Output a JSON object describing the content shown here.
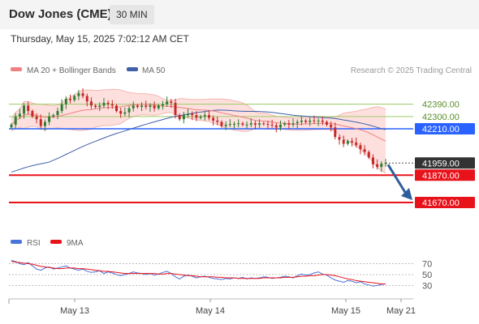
{
  "header": {
    "title": "Dow Jones (CME)",
    "timeframe": "30 MIN"
  },
  "timestamp": "Thursday, May 15, 2025 7:02:12 AM CET",
  "legend": {
    "ma20": "MA 20 + Bollinger Bands",
    "ma50": "MA 50",
    "copyright": "Research © 2025 Trading Central"
  },
  "rsi_legend": {
    "rsi": "RSI",
    "ma9": "9MA"
  },
  "colors": {
    "candle_up": "#2e7d32",
    "candle_down": "#c62828",
    "ma20": "#f08080",
    "bollinger_fill": "#fde0de",
    "ma50": "#3f5fa8",
    "resistance_green": "#9ccc65",
    "support_red": "#e8121b",
    "pivot_blue": "#2962ff",
    "current_price_bg": "#333333",
    "arrow": "#2f5d9b",
    "rsi_line": "#4a74d8",
    "rsi_ma": "#e8121b"
  },
  "chart_data": [
    {
      "type": "candlestick",
      "x_ticks": [
        "May 13",
        "May 14",
        "May 15",
        "May 21"
      ],
      "ylim": [
        41480,
        42560
      ],
      "series": [
        {
          "name": "MA 20 + Bollinger Bands"
        },
        {
          "name": "MA 50"
        }
      ],
      "levels": [
        {
          "value": 42390,
          "label": "42390.00",
          "kind": "resistance"
        },
        {
          "value": 42300,
          "label": "42300.00",
          "kind": "resistance"
        },
        {
          "value": 42210,
          "label": "42210.00",
          "kind": "pivot"
        },
        {
          "value": 41959,
          "label": "41959.00",
          "kind": "current"
        },
        {
          "value": 41870,
          "label": "41870.00",
          "kind": "support"
        },
        {
          "value": 41670,
          "label": "41670.00",
          "kind": "support"
        }
      ],
      "closes": [
        42240,
        42300,
        42320,
        42380,
        42340,
        42300,
        42280,
        42230,
        42260,
        42300,
        42310,
        42340,
        42390,
        42430,
        42420,
        42450,
        42470,
        42450,
        42410,
        42380,
        42370,
        42380,
        42400,
        42390,
        42380,
        42340,
        42320,
        42330,
        42360,
        42380,
        42370,
        42380,
        42370,
        42380,
        42360,
        42380,
        42390,
        42410,
        42400,
        42310,
        42280,
        42310,
        42320,
        42310,
        42290,
        42300,
        42310,
        42290,
        42270,
        42260,
        42230,
        42240,
        42245,
        42245,
        42250,
        42240,
        42240,
        42250,
        42240,
        42250,
        42245,
        42240,
        42235,
        42220,
        42240,
        42250,
        42240,
        42250,
        42260,
        42270,
        42260,
        42270,
        42265,
        42270,
        42260,
        42240,
        42220,
        42150,
        42130,
        42100,
        42120,
        42110,
        42090,
        42060,
        42040,
        42000,
        41950,
        41930,
        41955,
        41959
      ],
      "highs_offset": 30,
      "lows_offset": 30,
      "projection": {
        "from": 41959,
        "to": 41670
      }
    },
    {
      "type": "line",
      "title": "RSI",
      "y_ticks": [
        70,
        50,
        30
      ],
      "ylim": [
        10,
        90
      ],
      "series": [
        {
          "name": "RSI",
          "values": [
            76,
            74,
            70,
            68,
            72,
            66,
            60,
            58,
            62,
            64,
            60,
            62,
            64,
            66,
            62,
            60,
            58,
            60,
            56,
            54,
            55,
            57,
            52,
            55,
            53,
            50,
            48,
            50,
            52,
            55,
            53,
            52,
            50,
            52,
            49,
            51,
            54,
            56,
            52,
            46,
            42,
            47,
            49,
            47,
            44,
            46,
            47,
            45,
            43,
            42,
            41,
            43,
            42,
            44,
            43,
            45,
            42,
            44,
            43,
            44,
            46,
            45,
            43,
            44,
            45,
            47,
            46,
            44,
            48,
            51,
            49,
            50,
            53,
            55,
            51,
            49,
            44,
            40,
            38,
            36,
            39,
            38,
            35,
            37,
            33,
            31,
            29,
            30,
            32,
            33
          ]
        },
        {
          "name": "9MA",
          "values": [
            74,
            73,
            72,
            71,
            70,
            69,
            67,
            65,
            64,
            63,
            62,
            61,
            61,
            62,
            62,
            62,
            61,
            61,
            60,
            59,
            58,
            57,
            56,
            56,
            55,
            54,
            53,
            52,
            52,
            52,
            52,
            52,
            52,
            52,
            52,
            51,
            51,
            52,
            52,
            51,
            50,
            49,
            48,
            48,
            47,
            46,
            46,
            46,
            46,
            45,
            45,
            44,
            44,
            44,
            43,
            43,
            43,
            43,
            43,
            43,
            44,
            44,
            44,
            44,
            44,
            45,
            45,
            45,
            46,
            47,
            47,
            48,
            48,
            49,
            50,
            50,
            49,
            48,
            46,
            44,
            42,
            41,
            39,
            38,
            37,
            36,
            35,
            34,
            33,
            33
          ]
        }
      ]
    }
  ]
}
